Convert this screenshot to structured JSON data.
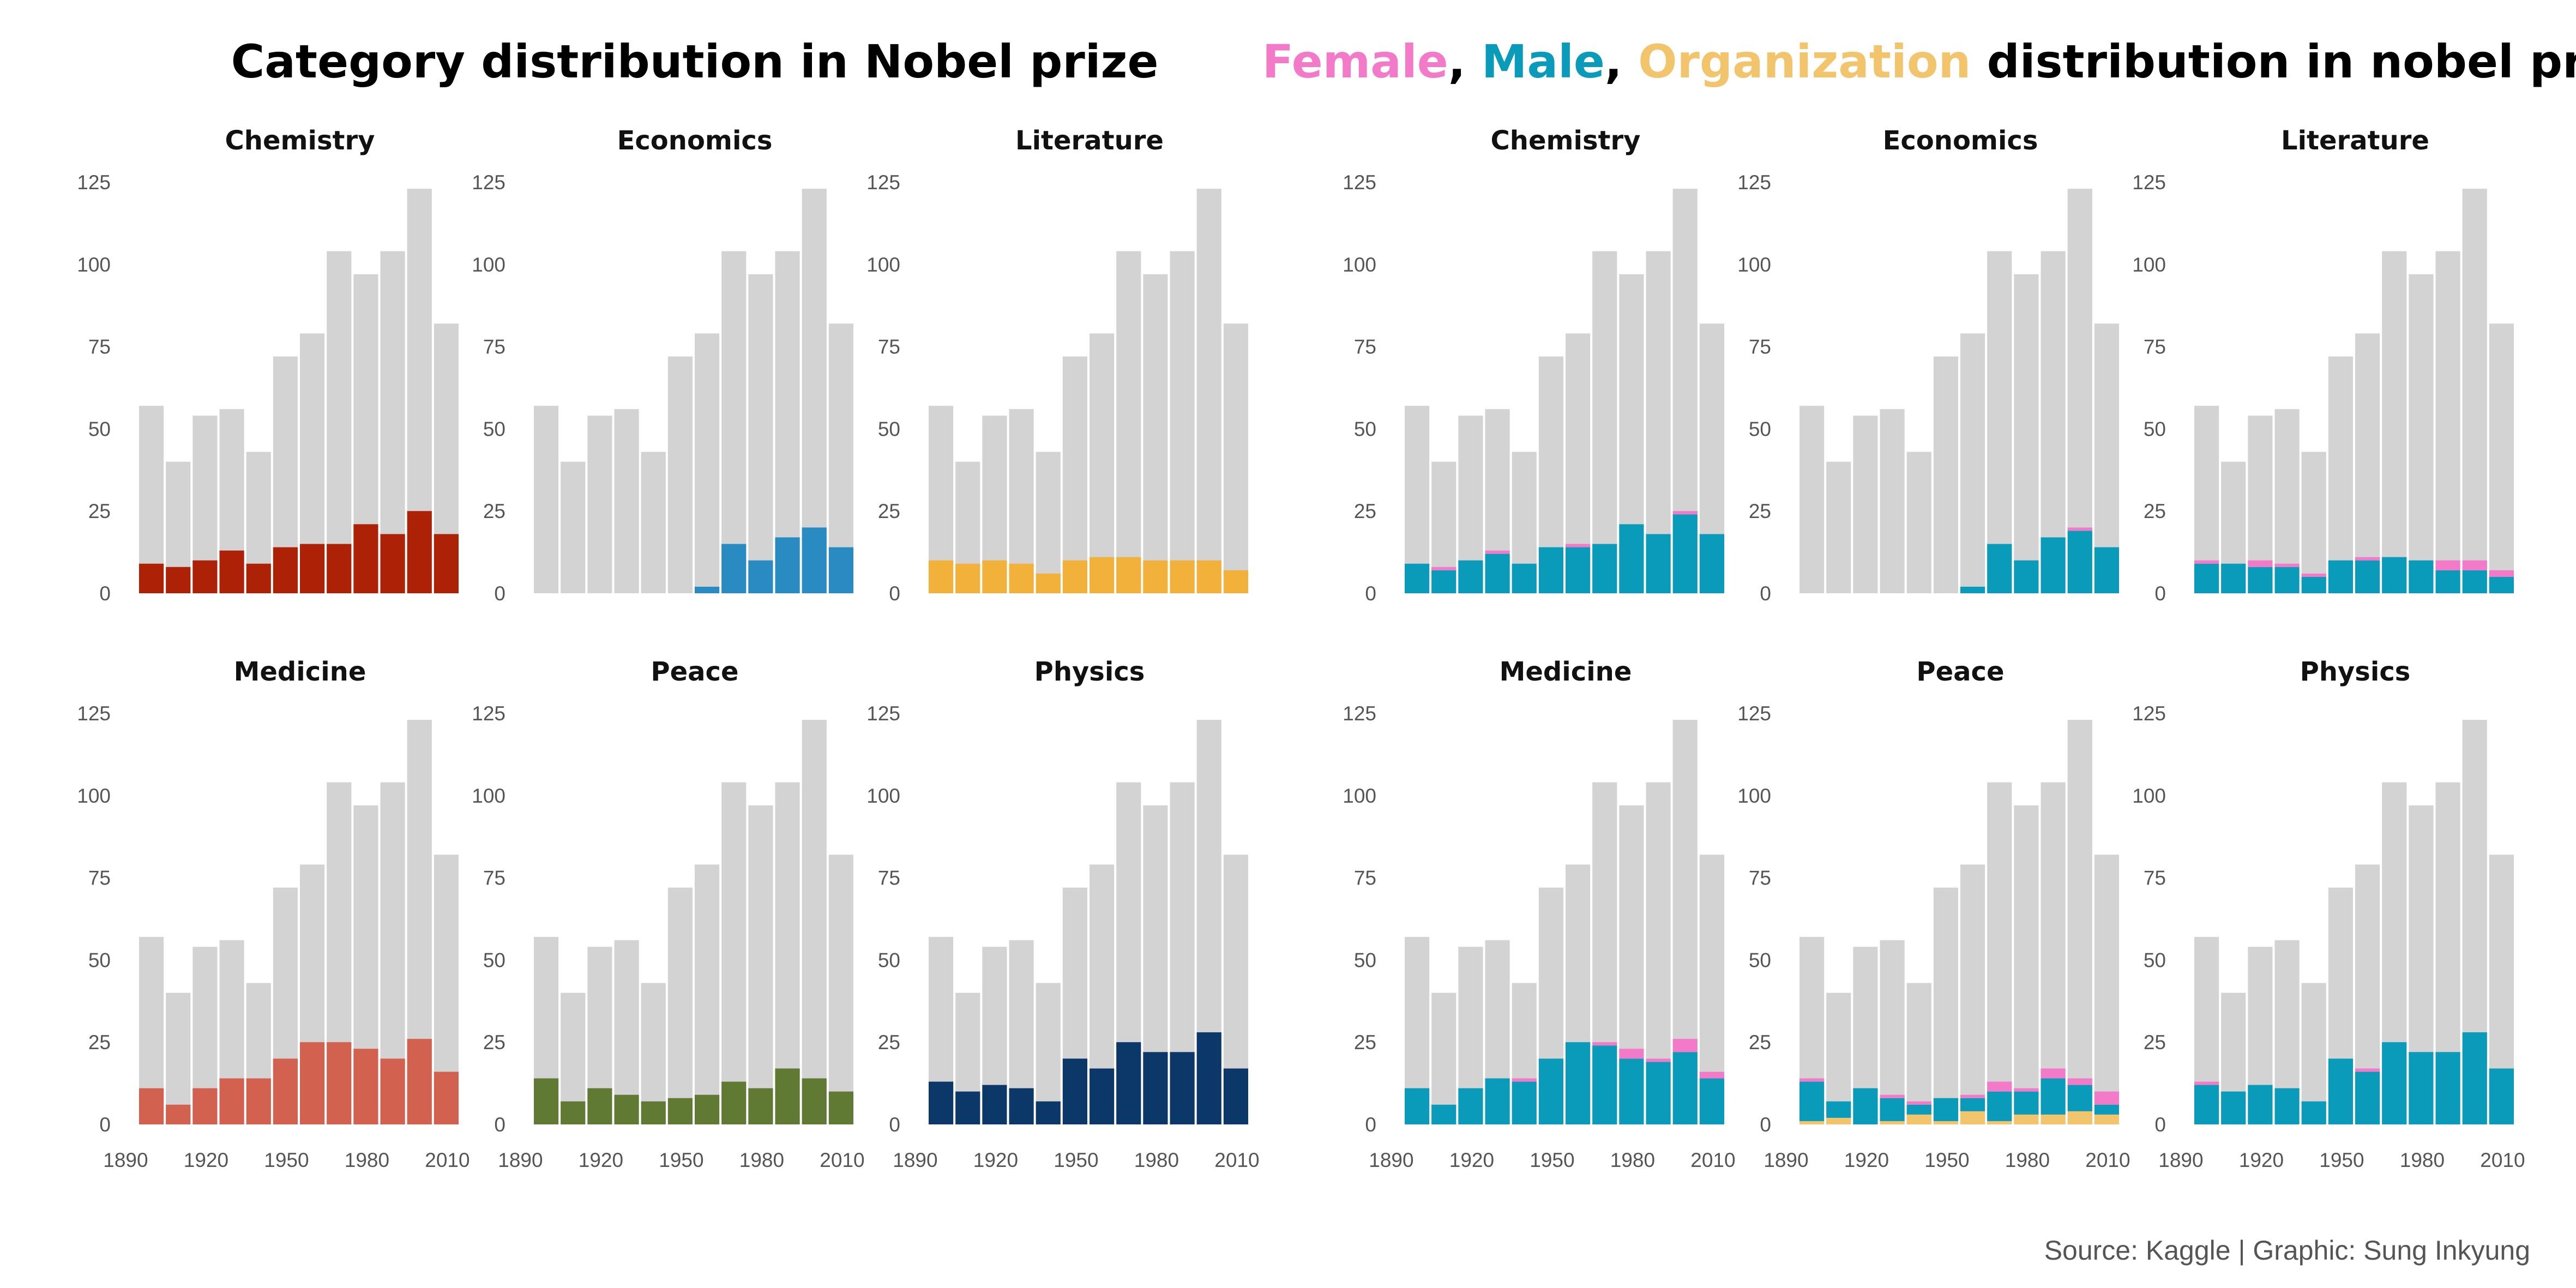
{
  "chart_data": [
    {
      "type": "bar",
      "title": "Category distribution in Nobel prize",
      "x": [
        1900,
        1910,
        1920,
        1930,
        1940,
        1950,
        1960,
        1970,
        1980,
        1990,
        2000,
        2010
      ],
      "total": [
        57,
        40,
        54,
        56,
        43,
        72,
        79,
        104,
        97,
        104,
        123,
        82
      ],
      "xticks": [
        "1890",
        "1920",
        "1950",
        "1980",
        "2010"
      ],
      "xtick_values": [
        1890,
        1920,
        1950,
        1980,
        2010
      ],
      "yticks": [
        "0",
        "25",
        "50",
        "75",
        "100",
        "125"
      ],
      "ylim": [
        0,
        125
      ],
      "panels": [
        {
          "title": "Chemistry",
          "color": "#ad2206",
          "values": [
            9,
            8,
            10,
            13,
            9,
            14,
            15,
            15,
            21,
            18,
            25,
            18
          ]
        },
        {
          "title": "Economics",
          "color": "#2a8bc3",
          "values": [
            0,
            0,
            0,
            0,
            0,
            0,
            2,
            15,
            10,
            17,
            20,
            14
          ]
        },
        {
          "title": "Literature",
          "color": "#f1b13b",
          "values": [
            10,
            9,
            10,
            9,
            6,
            10,
            11,
            11,
            10,
            10,
            10,
            7
          ]
        },
        {
          "title": "Medicine",
          "color": "#d3614f",
          "values": [
            11,
            6,
            11,
            14,
            14,
            20,
            25,
            25,
            23,
            20,
            26,
            16
          ]
        },
        {
          "title": "Peace",
          "color": "#617a33",
          "values": [
            14,
            7,
            11,
            9,
            7,
            8,
            9,
            13,
            11,
            17,
            14,
            10
          ]
        },
        {
          "title": "Physics",
          "color": "#0b3868",
          "values": [
            13,
            10,
            12,
            11,
            7,
            20,
            17,
            25,
            22,
            22,
            28,
            17
          ]
        }
      ],
      "background_color": "#d3d3d3"
    },
    {
      "type": "bar",
      "title_parts": [
        {
          "text": "Female",
          "color": "#f27ac8"
        },
        {
          "text": ", ",
          "color": "#000000"
        },
        {
          "text": "Male",
          "color": "#0a9aba"
        },
        {
          "text": ", ",
          "color": "#000000"
        },
        {
          "text": "Organization",
          "color": "#f2c46b"
        },
        {
          "text": " distribution in nobel prize",
          "color": "#000000"
        }
      ],
      "x": [
        1900,
        1910,
        1920,
        1930,
        1940,
        1950,
        1960,
        1970,
        1980,
        1990,
        2000,
        2010
      ],
      "total": [
        57,
        40,
        54,
        56,
        43,
        72,
        79,
        104,
        97,
        104,
        123,
        82
      ],
      "xticks": [
        "1890",
        "1920",
        "1950",
        "1980",
        "2010"
      ],
      "xtick_values": [
        1890,
        1920,
        1950,
        1980,
        2010
      ],
      "yticks": [
        "0",
        "25",
        "50",
        "75",
        "100",
        "125"
      ],
      "ylim": [
        0,
        125
      ],
      "stack_order": [
        "Organization",
        "Male",
        "Female"
      ],
      "colors": {
        "Female": "#f27ac8",
        "Male": "#0a9aba",
        "Organization": "#f2c46b"
      },
      "panels": [
        {
          "title": "Chemistry",
          "Organization": [
            0,
            0,
            0,
            0,
            0,
            0,
            0,
            0,
            0,
            0,
            0,
            0
          ],
          "Male": [
            9,
            7,
            10,
            12,
            9,
            14,
            14,
            15,
            21,
            18,
            24,
            18
          ],
          "Female": [
            0,
            1,
            0,
            1,
            0,
            0,
            1,
            0,
            0,
            0,
            1,
            0
          ]
        },
        {
          "title": "Economics",
          "Organization": [
            0,
            0,
            0,
            0,
            0,
            0,
            0,
            0,
            0,
            0,
            0,
            0
          ],
          "Male": [
            0,
            0,
            0,
            0,
            0,
            0,
            2,
            15,
            10,
            17,
            19,
            14
          ],
          "Female": [
            0,
            0,
            0,
            0,
            0,
            0,
            0,
            0,
            0,
            0,
            1,
            0
          ]
        },
        {
          "title": "Literature",
          "Organization": [
            0,
            0,
            0,
            0,
            0,
            0,
            0,
            0,
            0,
            0,
            0,
            0
          ],
          "Male": [
            9,
            9,
            8,
            8,
            5,
            10,
            10,
            11,
            10,
            7,
            7,
            5
          ],
          "Female": [
            1,
            0,
            2,
            1,
            1,
            0,
            1,
            0,
            0,
            3,
            3,
            2
          ]
        },
        {
          "title": "Medicine",
          "Organization": [
            0,
            0,
            0,
            0,
            0,
            0,
            0,
            0,
            0,
            0,
            0,
            0
          ],
          "Male": [
            11,
            6,
            11,
            14,
            13,
            20,
            25,
            24,
            20,
            19,
            22,
            14
          ],
          "Female": [
            0,
            0,
            0,
            0,
            1,
            0,
            0,
            1,
            3,
            1,
            4,
            2
          ]
        },
        {
          "title": "Peace",
          "Organization": [
            1,
            2,
            0,
            1,
            3,
            1,
            4,
            1,
            3,
            3,
            4,
            3
          ],
          "Male": [
            12,
            5,
            11,
            7,
            3,
            7,
            4,
            9,
            7,
            11,
            8,
            3
          ],
          "Female": [
            1,
            0,
            0,
            1,
            1,
            0,
            1,
            3,
            1,
            3,
            2,
            4
          ]
        },
        {
          "title": "Physics",
          "Organization": [
            0,
            0,
            0,
            0,
            0,
            0,
            0,
            0,
            0,
            0,
            0,
            0
          ],
          "Male": [
            12,
            10,
            12,
            11,
            7,
            20,
            16,
            25,
            22,
            22,
            28,
            17
          ],
          "Female": [
            1,
            0,
            0,
            0,
            0,
            0,
            1,
            0,
            0,
            0,
            0,
            0
          ]
        }
      ],
      "background_color": "#d3d3d3"
    }
  ],
  "caption": "Source: Kaggle | Graphic: Sung Inkyung"
}
